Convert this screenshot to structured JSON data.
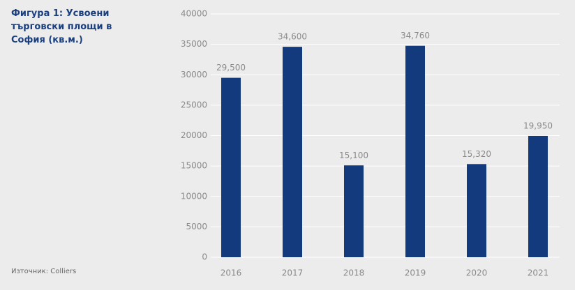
{
  "chart_data": {
    "type": "bar",
    "title": "Фигура 1: Усвоени търговски площи в София (кв.м.)",
    "source": "Източник: Colliers",
    "categories": [
      "2016",
      "2017",
      "2018",
      "2019",
      "2020",
      "2021"
    ],
    "values": [
      29500,
      34600,
      15100,
      34760,
      15320,
      19950
    ],
    "value_labels": [
      "29,500",
      "34,600",
      "15,100",
      "34,760",
      "15,320",
      "19,950"
    ],
    "color": "#133a7c",
    "ylim": [
      0,
      40000
    ],
    "yticks": [
      0,
      5000,
      10000,
      15000,
      20000,
      25000,
      30000,
      35000,
      40000
    ],
    "grid": true
  }
}
